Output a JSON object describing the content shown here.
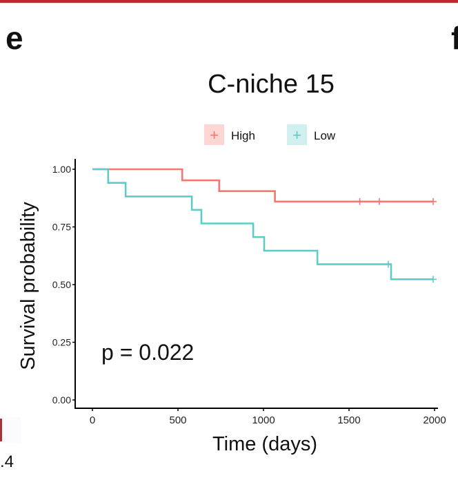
{
  "figure": {
    "panel_labels": [
      "e",
      "f"
    ],
    "left_fragment_text": ".4"
  },
  "colors": {
    "high": "#f8766d",
    "low": "#5ecbca",
    "high_legend_bg": "#fbd6d3",
    "low_legend_bg": "#d0efee",
    "axis": "#000000",
    "top_bar": "#c1272d"
  },
  "chart_data": {
    "type": "line",
    "subtype": "kaplan-meier",
    "title": "C-niche 15",
    "xlabel": "Time (days)",
    "ylabel": "Survival probability",
    "xlim": [
      -100,
      2020
    ],
    "ylim": [
      -0.03,
      1.04
    ],
    "xticks": [
      0,
      500,
      1000,
      1500,
      2000
    ],
    "xtick_labels": [
      "0",
      "500",
      "1000",
      "1500",
      "2000"
    ],
    "yticks": [
      0.0,
      0.25,
      0.5,
      0.75,
      1.0
    ],
    "ytick_labels": [
      "0.00",
      "0.25",
      "0.50",
      "0.75",
      "1.00"
    ],
    "grid": false,
    "legend": {
      "placement": "top",
      "entries": [
        {
          "name": "High",
          "symbol": "+"
        },
        {
          "name": "Low",
          "symbol": "+"
        }
      ]
    },
    "annotation": "p = 0.022",
    "series": [
      {
        "name": "High",
        "steps": [
          {
            "x": 0,
            "y": 1.0
          },
          {
            "x": 525,
            "y": 0.952
          },
          {
            "x": 741,
            "y": 0.905
          },
          {
            "x": 1067,
            "y": 0.86
          }
        ],
        "end_x": 1992,
        "censored": [
          {
            "x": 1563,
            "y": 0.86
          },
          {
            "x": 1677,
            "y": 0.86
          },
          {
            "x": 1992,
            "y": 0.86
          }
        ]
      },
      {
        "name": "Low",
        "steps": [
          {
            "x": 0,
            "y": 1.0
          },
          {
            "x": 92,
            "y": 0.941
          },
          {
            "x": 194,
            "y": 0.882
          },
          {
            "x": 581,
            "y": 0.824
          },
          {
            "x": 637,
            "y": 0.765
          },
          {
            "x": 940,
            "y": 0.706
          },
          {
            "x": 1004,
            "y": 0.647
          },
          {
            "x": 1315,
            "y": 0.588
          },
          {
            "x": 1746,
            "y": 0.523
          }
        ],
        "end_x": 1992,
        "censored": [
          {
            "x": 1730,
            "y": 0.588
          },
          {
            "x": 1992,
            "y": 0.523
          }
        ]
      }
    ]
  }
}
